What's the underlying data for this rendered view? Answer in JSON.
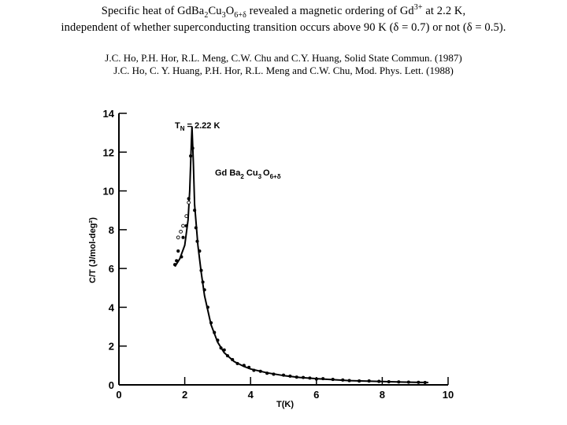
{
  "header": {
    "line1_a": "Specific heat of GdBa",
    "line1_sub1": "2",
    "line1_b": "Cu",
    "line1_sub2": "3",
    "line1_c": "O",
    "line1_sub3": "6+δ",
    "line1_d": " revealed a magnetic ordering of Gd",
    "line1_sup": "3+",
    "line1_e": " at 2.2 K,",
    "line2": "independent of whether superconducting transition occurs above 90 K (δ = 0.7) or not (δ = 0.5)."
  },
  "refs": {
    "ref1": "J.C. Ho, P.H. Hor, R.L. Meng, C.W. Chu and C.Y. Huang, Solid State Commun. (1987)",
    "ref2": "J.C. Ho, C. Y. Huang, P.H. Hor, R.L. Meng and C.W. Chu, Mod. Phys. Lett. (1988)"
  },
  "chart_data": {
    "type": "line",
    "xlabel": "T(K)",
    "ylabel": "C/T  (J/mol-deg²)",
    "xlim": [
      0,
      10
    ],
    "ylim": [
      0,
      14
    ],
    "xticks": [
      0,
      2,
      4,
      6,
      8,
      10
    ],
    "yticks": [
      0,
      2,
      4,
      6,
      8,
      10,
      12,
      14
    ],
    "annotations": {
      "tn_main": "T",
      "tn_sub": "N",
      "tn_value": "= 2.22 K",
      "compound_main": "Gd Ba",
      "compound_sub1": "2",
      "compound_mid": " Cu",
      "compound_sub2": "3",
      "compound_o": "O",
      "compound_sub3": "6+δ"
    },
    "series": [
      {
        "style": "curve",
        "x": [
          1.7,
          1.85,
          2.0,
          2.1,
          2.15,
          2.2,
          2.22,
          2.26,
          2.3,
          2.4,
          2.5,
          2.6,
          2.8,
          3.0,
          3.2,
          3.5,
          3.8,
          4.0,
          4.5,
          5.0,
          5.5,
          6.0,
          7.0,
          8.0,
          9.0,
          9.4
        ],
        "y": [
          6.1,
          6.5,
          7.2,
          8.5,
          10.0,
          12.5,
          13.3,
          11.5,
          9.3,
          7.2,
          5.8,
          4.6,
          3.1,
          2.2,
          1.65,
          1.2,
          0.95,
          0.82,
          0.62,
          0.48,
          0.38,
          0.32,
          0.22,
          0.17,
          0.13,
          0.12
        ]
      },
      {
        "style": "points",
        "x": [
          1.7,
          1.75,
          1.8,
          1.9,
          1.95,
          2.05,
          2.12,
          2.18,
          2.24,
          2.3,
          2.34,
          2.38,
          2.45,
          2.5,
          2.55,
          2.6,
          2.7,
          2.8,
          2.9,
          3.0,
          3.1,
          3.2,
          3.3,
          3.45,
          3.6,
          3.8,
          3.95,
          4.1,
          4.3,
          4.5,
          4.7,
          5.0,
          5.2,
          5.4,
          5.6,
          5.8,
          6.0,
          6.2,
          6.5,
          6.8,
          7.0,
          7.3,
          7.6,
          7.9,
          8.2,
          8.5,
          8.8,
          9.1,
          9.3
        ],
        "y": [
          6.2,
          6.4,
          6.9,
          6.6,
          7.6,
          8.2,
          9.6,
          11.8,
          12.2,
          9.0,
          8.1,
          7.4,
          6.9,
          5.9,
          5.3,
          4.9,
          4.0,
          3.2,
          2.7,
          2.3,
          1.9,
          1.8,
          1.5,
          1.3,
          1.1,
          1.0,
          0.9,
          0.75,
          0.7,
          0.6,
          0.55,
          0.5,
          0.45,
          0.4,
          0.38,
          0.35,
          0.3,
          0.32,
          0.28,
          0.25,
          0.22,
          0.2,
          0.2,
          0.18,
          0.16,
          0.15,
          0.14,
          0.13,
          0.12
        ]
      },
      {
        "style": "open-points",
        "x": [
          1.8,
          1.88,
          1.95,
          2.05,
          2.12
        ],
        "y": [
          7.6,
          7.9,
          8.2,
          8.7,
          9.4
        ]
      }
    ]
  }
}
